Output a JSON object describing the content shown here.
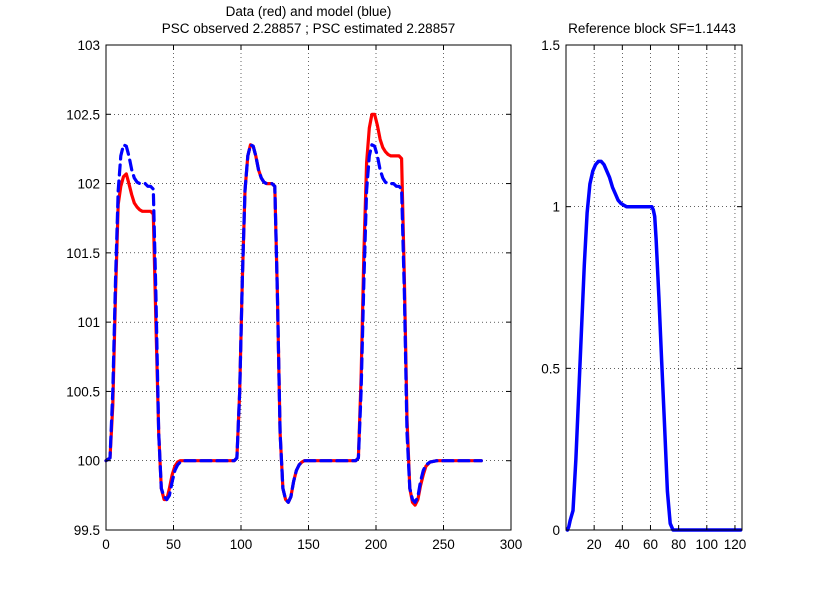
{
  "chart_data": [
    {
      "type": "line",
      "title": "Data (red) and model (blue)",
      "subtitle": "PSC observed 2.28857 ; PSC estimated 2.28857",
      "xlim": [
        0,
        300
      ],
      "ylim": [
        99.5,
        103
      ],
      "xticks": [
        "0",
        "50",
        "100",
        "150",
        "200",
        "250",
        "300"
      ],
      "yticks": [
        "99.5",
        "100",
        "100.5",
        "101",
        "101.5",
        "102",
        "102.5",
        "103"
      ],
      "grid": true,
      "series": [
        {
          "color": "#ff0000",
          "style": "solid",
          "x": [
            0,
            3,
            5,
            7,
            9,
            11,
            13,
            15,
            17,
            19,
            21,
            23,
            25,
            27,
            29,
            31,
            33,
            35,
            37,
            39,
            41,
            43,
            45,
            47,
            49,
            51,
            53,
            55,
            57,
            60,
            65,
            70,
            80,
            90,
            95,
            97,
            99,
            101,
            103,
            105,
            107,
            109,
            111,
            113,
            115,
            117,
            119,
            121,
            123,
            125,
            127,
            129,
            131,
            133,
            135,
            137,
            139,
            141,
            143,
            145,
            147,
            150,
            155,
            160,
            170,
            180,
            185,
            187,
            189,
            191,
            193,
            195,
            197,
            199,
            201,
            203,
            205,
            207,
            209,
            211,
            213,
            215,
            217,
            219,
            221,
            223,
            225,
            227,
            229,
            231,
            233,
            235,
            237,
            240,
            245,
            250,
            260,
            270,
            278
          ],
          "y": [
            100,
            100.02,
            100.4,
            101.2,
            101.85,
            101.98,
            102.05,
            102.07,
            102.0,
            101.92,
            101.86,
            101.83,
            101.81,
            101.8,
            101.8,
            101.8,
            101.8,
            101.78,
            101.0,
            100.2,
            99.8,
            99.72,
            99.72,
            99.8,
            99.9,
            99.96,
            99.99,
            100.0,
            100.0,
            100.0,
            100.0,
            100.0,
            100.0,
            100.0,
            100.0,
            100.02,
            100.5,
            101.3,
            101.95,
            102.2,
            102.28,
            102.27,
            102.2,
            102.1,
            102.04,
            102.01,
            102.0,
            102.0,
            102.0,
            101.98,
            101.2,
            100.2,
            99.8,
            99.72,
            99.7,
            99.74,
            99.85,
            99.93,
            99.97,
            99.99,
            100.0,
            100.0,
            100.0,
            100.0,
            100.0,
            100.0,
            100.0,
            100.02,
            100.6,
            101.5,
            102.15,
            102.4,
            102.5,
            102.5,
            102.42,
            102.32,
            102.26,
            102.23,
            102.21,
            102.2,
            102.2,
            102.2,
            102.2,
            102.18,
            101.3,
            100.3,
            99.8,
            99.7,
            99.68,
            99.72,
            99.82,
            99.9,
            99.96,
            99.99,
            100.0,
            100.0,
            100.0,
            100.0,
            100.0
          ]
        },
        {
          "color": "#0000ff",
          "style": "dashed",
          "x": [
            0,
            3,
            5,
            7,
            9,
            11,
            13,
            15,
            17,
            19,
            21,
            23,
            25,
            27,
            29,
            31,
            33,
            35,
            37,
            39,
            41,
            43,
            45,
            47,
            49,
            51,
            53,
            55,
            57,
            60,
            65,
            70,
            80,
            90,
            95,
            97,
            99,
            101,
            103,
            105,
            107,
            109,
            111,
            113,
            115,
            117,
            119,
            121,
            123,
            125,
            127,
            129,
            131,
            133,
            135,
            137,
            139,
            141,
            143,
            145,
            147,
            150,
            155,
            160,
            170,
            180,
            185,
            187,
            189,
            191,
            193,
            195,
            197,
            199,
            201,
            203,
            205,
            207,
            209,
            211,
            213,
            215,
            217,
            219,
            221,
            223,
            225,
            227,
            229,
            231,
            233,
            235,
            237,
            240,
            245,
            250,
            260,
            270,
            278
          ],
          "y": [
            100,
            100.02,
            100.5,
            101.3,
            101.95,
            102.2,
            102.28,
            102.27,
            102.2,
            102.1,
            102.04,
            102.01,
            102.0,
            102.0,
            102.0,
            101.98,
            101.98,
            101.96,
            101.2,
            100.2,
            99.8,
            99.74,
            99.72,
            99.75,
            99.85,
            99.93,
            99.97,
            99.99,
            100.0,
            100.0,
            100.0,
            100.0,
            100.0,
            100.0,
            100.0,
            100.02,
            100.5,
            101.3,
            101.95,
            102.2,
            102.28,
            102.27,
            102.2,
            102.1,
            102.04,
            102.01,
            102.0,
            102.0,
            102.0,
            101.98,
            101.2,
            100.2,
            99.8,
            99.72,
            99.7,
            99.74,
            99.85,
            99.93,
            99.97,
            99.99,
            100.0,
            100.0,
            100.0,
            100.0,
            100.0,
            100.0,
            100.0,
            100.02,
            100.5,
            101.3,
            101.95,
            102.2,
            102.28,
            102.27,
            102.2,
            102.1,
            102.04,
            102.01,
            102.0,
            102.0,
            102.0,
            101.98,
            101.98,
            101.96,
            101.2,
            100.2,
            99.8,
            99.72,
            99.7,
            99.74,
            99.85,
            99.93,
            99.97,
            99.99,
            100.0,
            100.0,
            100.0,
            100.0,
            100.0
          ]
        }
      ]
    },
    {
      "type": "line",
      "title": "Reference block SF=1.1443",
      "xlim": [
        0,
        125
      ],
      "ylim": [
        0,
        1.5
      ],
      "xticks": [
        "20",
        "40",
        "60",
        "80",
        "100",
        "120"
      ],
      "xtick_values": [
        20,
        40,
        60,
        80,
        100,
        120
      ],
      "yticks": [
        "0",
        "0.5",
        "1",
        "1.5"
      ],
      "grid": true,
      "series": [
        {
          "color": "#0000ff",
          "style": "solid",
          "x": [
            1,
            2,
            3,
            5,
            7,
            9,
            11,
            13,
            15,
            17,
            19,
            21,
            23,
            25,
            27,
            29,
            31,
            33,
            35,
            37,
            39,
            41,
            43,
            45,
            47,
            49,
            51,
            53,
            55,
            57,
            59,
            61,
            62,
            63,
            64,
            66,
            68,
            70,
            72,
            74,
            76,
            78,
            80,
            82,
            84,
            86,
            88,
            90,
            92,
            94,
            96,
            98,
            100,
            102,
            104,
            106,
            108,
            110,
            112,
            114,
            116,
            118,
            120,
            122,
            124
          ],
          "y": [
            0,
            0.01,
            0.03,
            0.06,
            0.22,
            0.42,
            0.62,
            0.82,
            0.98,
            1.07,
            1.11,
            1.13,
            1.14,
            1.14,
            1.13,
            1.11,
            1.09,
            1.06,
            1.04,
            1.02,
            1.01,
            1.005,
            1.0,
            1.0,
            1.0,
            1.0,
            1.0,
            1.0,
            1.0,
            1.0,
            1.0,
            1.0,
            0.99,
            0.97,
            0.9,
            0.72,
            0.52,
            0.32,
            0.12,
            0.02,
            0,
            0,
            0,
            0,
            0,
            0,
            0,
            0,
            0,
            0,
            0,
            0,
            0,
            0,
            0,
            0,
            0,
            0,
            0,
            0,
            0,
            0,
            0,
            0,
            0
          ]
        }
      ]
    }
  ]
}
